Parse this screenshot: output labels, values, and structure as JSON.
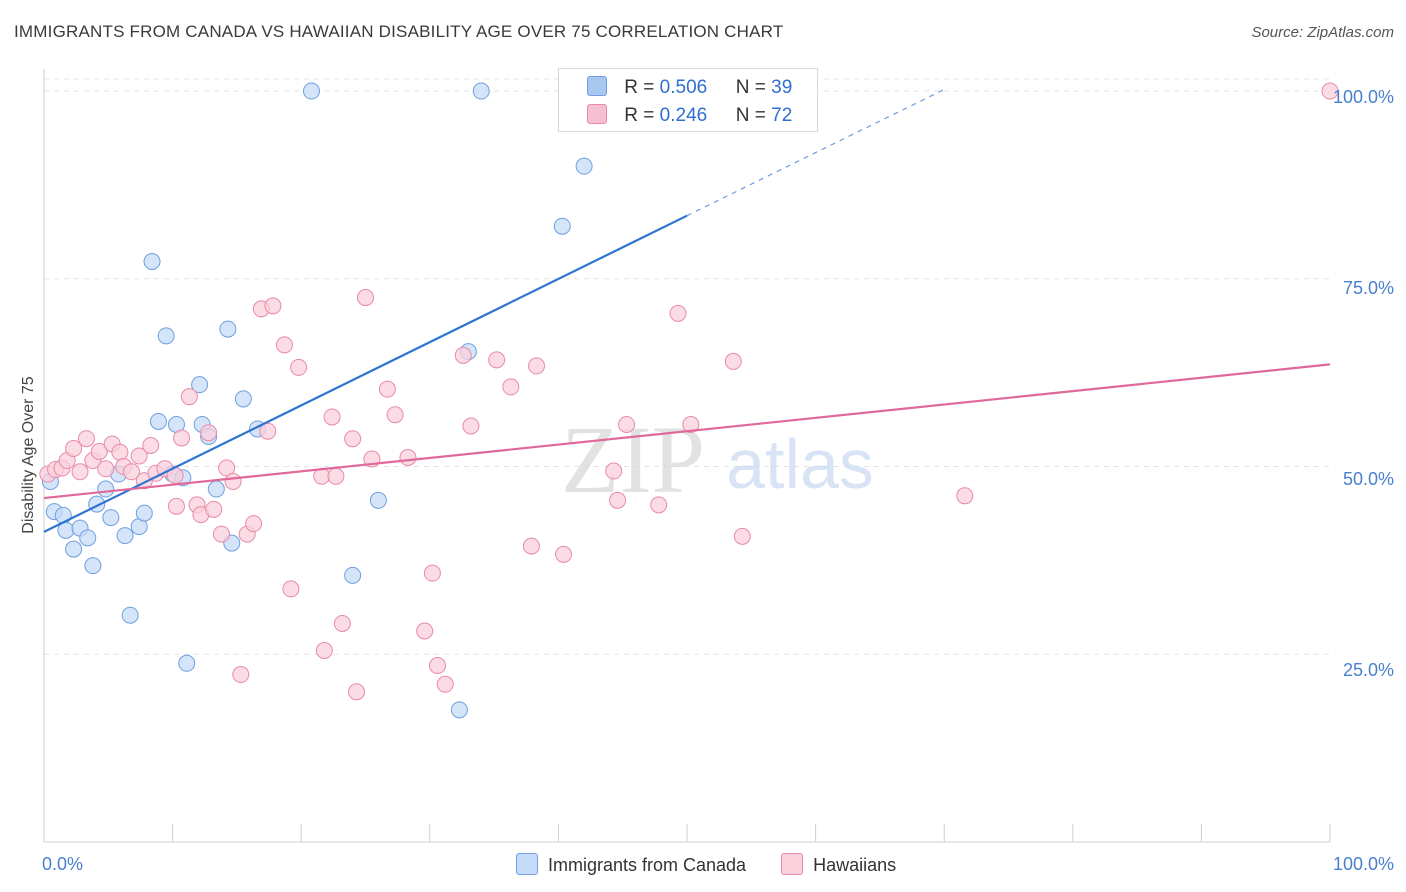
{
  "title": "IMMIGRANTS FROM CANADA VS HAWAIIAN DISABILITY AGE OVER 75 CORRELATION CHART",
  "source": "Source: ZipAtlas.com",
  "legend_top": [
    {
      "r_label": "R = ",
      "r_value": "0.506",
      "n_label": "N = ",
      "n_value": "39",
      "color": "#a9c8f0",
      "border": "#6f9fe0"
    },
    {
      "r_label": "R = ",
      "r_value": "0.246",
      "n_label": "N = ",
      "n_value": "72",
      "color": "#f7c0d0",
      "border": "#e88aa8"
    }
  ],
  "legend_bottom": [
    {
      "label": "Immigrants from Canada",
      "color": "#c5dbf7",
      "border": "#6f9fe0"
    },
    {
      "label": "Hawaiians",
      "color": "#f9d0dc",
      "border": "#e88aa8"
    }
  ],
  "chart_data": {
    "type": "scatter",
    "xlabel": "",
    "ylabel": "Disability Age Over 75",
    "xlim": [
      0,
      100
    ],
    "ylim": [
      0,
      104
    ],
    "x_tick_labels": [
      "0.0%",
      "100.0%"
    ],
    "y_ticks": [
      25,
      50,
      75,
      100
    ],
    "y_tick_labels": [
      "25.0%",
      "50.0%",
      "75.0%",
      "100.0%"
    ],
    "grid": true,
    "legend_position": "top-center",
    "series": [
      {
        "name": "Immigrants from Canada",
        "color": "#6f9fe0",
        "fill": "#c5dbf7",
        "line_color": "#2e74d1",
        "trend": {
          "x0": 0,
          "y0": 41.3,
          "x1": 50,
          "y1": 83.4,
          "dashed_to_x": 70,
          "dashed_to_y": 100.2
        },
        "points": [
          [
            0.5,
            48
          ],
          [
            0.8,
            44
          ],
          [
            1.5,
            43.5
          ],
          [
            1.7,
            41.5
          ],
          [
            2.3,
            39
          ],
          [
            2.8,
            41.8
          ],
          [
            3.4,
            40.5
          ],
          [
            3.8,
            36.8
          ],
          [
            4.1,
            45
          ],
          [
            4.8,
            47
          ],
          [
            5.2,
            43.2
          ],
          [
            5.8,
            49
          ],
          [
            6.3,
            40.8
          ],
          [
            6.7,
            30.2
          ],
          [
            7.4,
            42
          ],
          [
            7.8,
            43.8
          ],
          [
            8.4,
            77.3
          ],
          [
            8.9,
            56
          ],
          [
            9.5,
            67.4
          ],
          [
            10,
            49
          ],
          [
            10.3,
            55.6
          ],
          [
            10.8,
            48.5
          ],
          [
            11.1,
            23.8
          ],
          [
            12.1,
            60.9
          ],
          [
            12.3,
            55.6
          ],
          [
            12.8,
            54
          ],
          [
            13.4,
            47
          ],
          [
            14.3,
            68.3
          ],
          [
            14.6,
            39.8
          ],
          [
            15.5,
            59
          ],
          [
            16.6,
            55
          ],
          [
            20.8,
            100
          ],
          [
            24,
            35.5
          ],
          [
            26,
            45.5
          ],
          [
            33,
            65.3
          ],
          [
            34,
            100
          ],
          [
            32.3,
            17.6
          ],
          [
            40.3,
            82
          ],
          [
            42,
            90
          ]
        ]
      },
      {
        "name": "Hawaiians",
        "color": "#e88aa8",
        "fill": "#f9d0dc",
        "line_color": "#e0689a",
        "trend": {
          "x0": 0,
          "y0": 45.8,
          "x1": 100,
          "y1": 63.6
        },
        "points": [
          [
            0.3,
            49
          ],
          [
            0.9,
            49.6
          ],
          [
            1.4,
            49.8
          ],
          [
            1.8,
            50.8
          ],
          [
            2.3,
            52.4
          ],
          [
            2.8,
            49.3
          ],
          [
            3.3,
            53.7
          ],
          [
            3.8,
            50.8
          ],
          [
            4.3,
            52
          ],
          [
            4.8,
            49.7
          ],
          [
            5.3,
            53
          ],
          [
            5.9,
            51.9
          ],
          [
            6.2,
            50
          ],
          [
            6.8,
            49.3
          ],
          [
            7.4,
            51.4
          ],
          [
            7.8,
            48.1
          ],
          [
            8.3,
            52.8
          ],
          [
            8.7,
            49.1
          ],
          [
            9.4,
            49.7
          ],
          [
            10.2,
            48.8
          ],
          [
            10.3,
            44.7
          ],
          [
            10.7,
            53.8
          ],
          [
            11.3,
            59.3
          ],
          [
            11.9,
            44.9
          ],
          [
            12.2,
            43.6
          ],
          [
            12.8,
            54.5
          ],
          [
            13.2,
            44.3
          ],
          [
            13.8,
            41
          ],
          [
            14.2,
            49.8
          ],
          [
            14.7,
            48
          ],
          [
            15.3,
            22.3
          ],
          [
            15.8,
            41
          ],
          [
            16.3,
            42.4
          ],
          [
            16.9,
            71
          ],
          [
            17.4,
            54.7
          ],
          [
            17.8,
            71.4
          ],
          [
            18.7,
            66.2
          ],
          [
            19.2,
            33.7
          ],
          [
            19.8,
            63.2
          ],
          [
            21.6,
            48.7
          ],
          [
            21.8,
            25.5
          ],
          [
            22.4,
            56.6
          ],
          [
            22.7,
            48.7
          ],
          [
            23.2,
            29.1
          ],
          [
            24,
            53.7
          ],
          [
            24.3,
            20
          ],
          [
            25,
            72.5
          ],
          [
            25.5,
            51
          ],
          [
            26.7,
            60.3
          ],
          [
            27.3,
            56.9
          ],
          [
            28.3,
            51.2
          ],
          [
            29.6,
            28.1
          ],
          [
            30.2,
            35.8
          ],
          [
            30.6,
            23.5
          ],
          [
            31.2,
            21
          ],
          [
            32.6,
            64.8
          ],
          [
            33.2,
            55.4
          ],
          [
            35.2,
            64.2
          ],
          [
            36.3,
            60.6
          ],
          [
            37.9,
            39.4
          ],
          [
            38.3,
            63.4
          ],
          [
            40.4,
            38.3
          ],
          [
            44.3,
            49.4
          ],
          [
            44.6,
            45.5
          ],
          [
            45.3,
            55.6
          ],
          [
            47.8,
            44.9
          ],
          [
            49.3,
            70.4
          ],
          [
            50.3,
            55.6
          ],
          [
            53.6,
            64
          ],
          [
            54.3,
            40.7
          ],
          [
            71.6,
            46.1
          ],
          [
            100,
            100
          ]
        ]
      }
    ]
  }
}
